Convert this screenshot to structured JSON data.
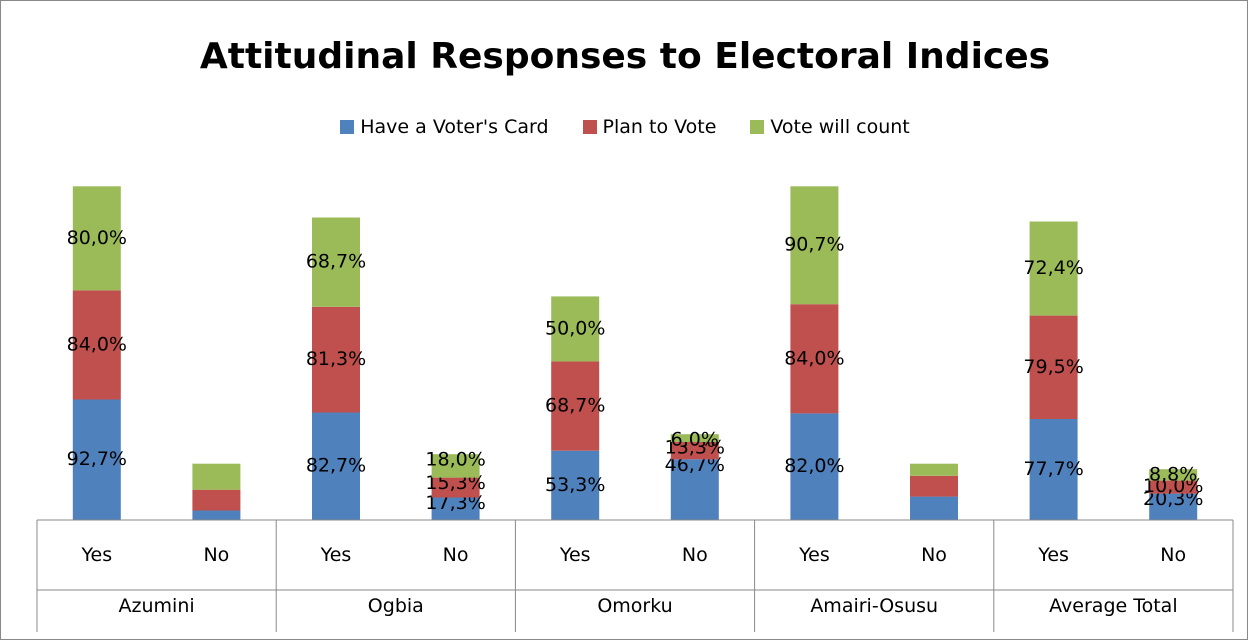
{
  "chart_data": {
    "type": "bar",
    "stacked": true,
    "title": "Attitudinal Responses to Electoral Indices",
    "legend_position": "top",
    "groups": [
      "Azumini",
      "Ogbia",
      "Omorku",
      "Amairi-Osusu",
      "Average Total"
    ],
    "categories": [
      "Yes",
      "No"
    ],
    "series": [
      {
        "name": "Have a Voter's Card",
        "color": "#4F81BD",
        "values": [
          [
            92.7,
            7.3
          ],
          [
            82.7,
            17.3
          ],
          [
            53.3,
            46.7
          ],
          [
            82.0,
            18.0
          ],
          [
            77.7,
            20.3
          ]
        ],
        "labels": [
          [
            "92,7%",
            ""
          ],
          [
            "82,7%",
            "17,3%"
          ],
          [
            "53,3%",
            "46,7%"
          ],
          [
            "82,0%",
            ""
          ],
          [
            "77,7%",
            "20,3%"
          ]
        ]
      },
      {
        "name": "Plan to Vote",
        "color": "#C0504D",
        "values": [
          [
            84.0,
            16.0
          ],
          [
            81.3,
            15.3
          ],
          [
            68.7,
            13.3
          ],
          [
            84.0,
            16.0
          ],
          [
            79.5,
            10.0
          ]
        ],
        "labels": [
          [
            "84,0%",
            ""
          ],
          [
            "81,3%",
            "15,3%"
          ],
          [
            "68,7%",
            "13,3%"
          ],
          [
            "84,0%",
            ""
          ],
          [
            "79,5%",
            "10,0%"
          ]
        ]
      },
      {
        "name": "Vote will count",
        "color": "#9BBB59",
        "values": [
          [
            80.0,
            20.0
          ],
          [
            68.7,
            18.0
          ],
          [
            50.0,
            6.0
          ],
          [
            90.7,
            9.3
          ],
          [
            72.4,
            8.8
          ]
        ],
        "labels": [
          [
            "80,0%",
            ""
          ],
          [
            "68,7%",
            "18,0%"
          ],
          [
            "50,0%",
            "6,0%"
          ],
          [
            "90,7%",
            ""
          ],
          [
            "72,4%",
            "8,8%"
          ]
        ]
      }
    ],
    "ylim": [
      0,
      290
    ],
    "grid": false
  }
}
